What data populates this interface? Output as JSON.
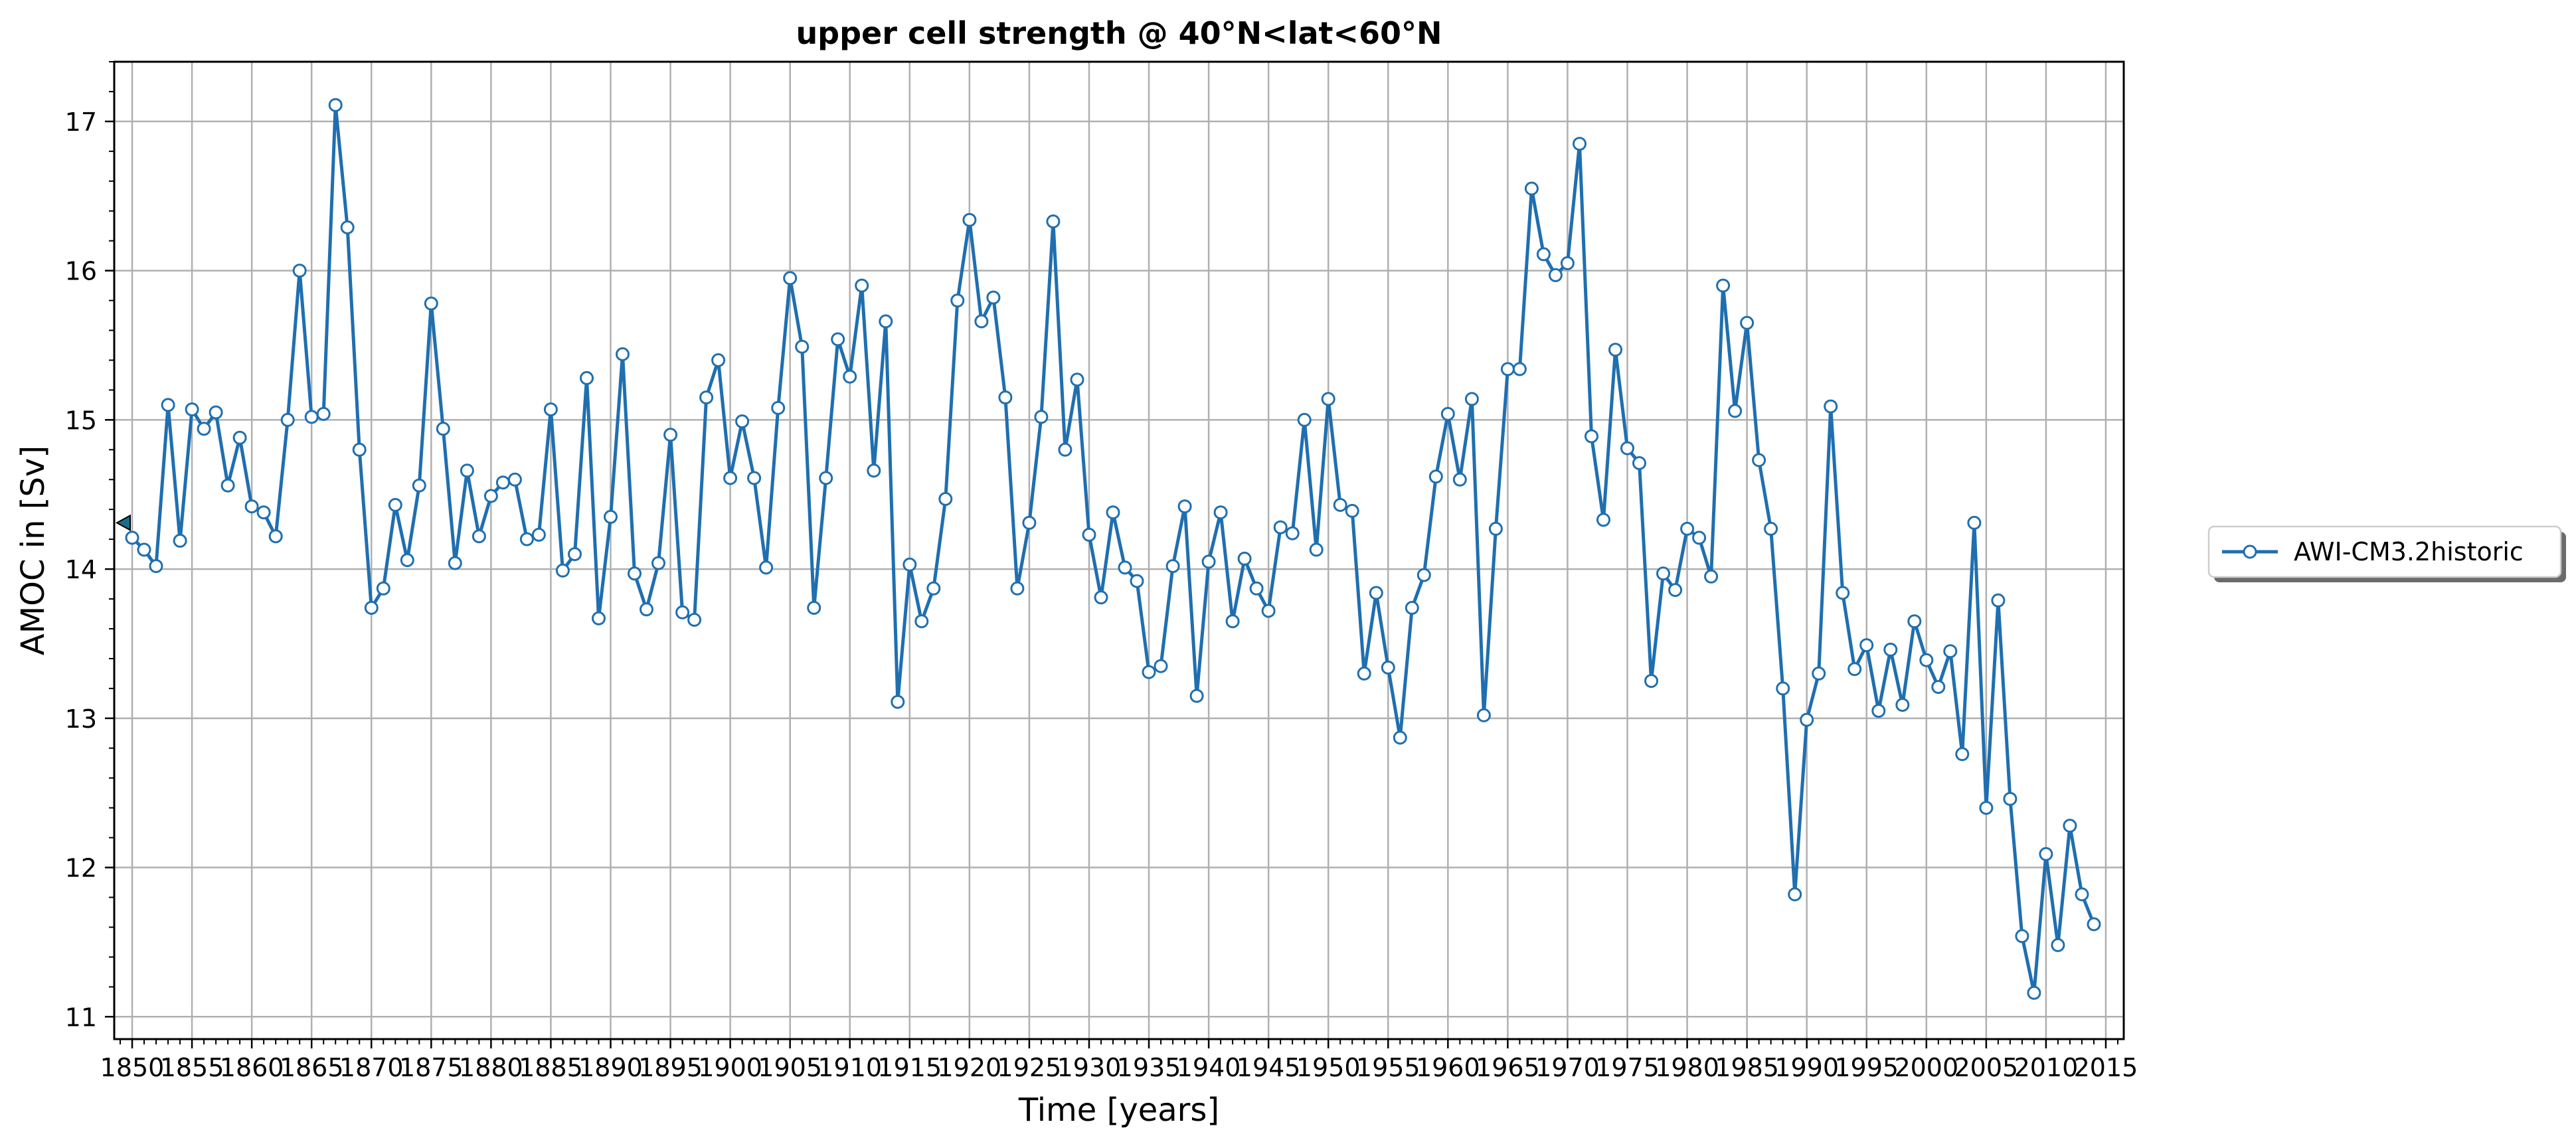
{
  "chart_data": {
    "type": "line",
    "title": "upper cell strength @ 40°N<lat<60°N",
    "xlabel": "Time [years]",
    "ylabel": "AMOC in [Sv]",
    "xlim": [
      1848.5,
      2016.5
    ],
    "ylim": [
      10.85,
      17.4
    ],
    "xticks": [
      1850,
      1855,
      1860,
      1865,
      1870,
      1875,
      1880,
      1885,
      1890,
      1895,
      1900,
      1905,
      1910,
      1915,
      1920,
      1925,
      1930,
      1935,
      1940,
      1945,
      1950,
      1955,
      1960,
      1965,
      1970,
      1975,
      1980,
      1985,
      1990,
      1995,
      2000,
      2005,
      2010,
      2015
    ],
    "yticks": [
      11,
      12,
      13,
      14,
      15,
      16,
      17
    ],
    "grid": true,
    "legend_position": "right",
    "start_marker_value": 14.31,
    "series": [
      {
        "name": "AWI-CM3.2historic",
        "color": "#1f6fb0",
        "x_start": 1850,
        "values": [
          14.21,
          14.13,
          14.02,
          15.1,
          14.19,
          15.07,
          14.94,
          15.05,
          14.56,
          14.88,
          14.42,
          14.38,
          14.22,
          15.0,
          16.0,
          15.02,
          15.04,
          17.11,
          16.29,
          14.8,
          13.74,
          13.87,
          14.43,
          14.06,
          14.56,
          15.78,
          14.94,
          14.04,
          14.66,
          14.22,
          14.49,
          14.58,
          14.6,
          14.2,
          14.23,
          15.07,
          13.99,
          14.1,
          15.28,
          13.67,
          14.35,
          15.44,
          13.97,
          13.73,
          14.04,
          14.9,
          13.71,
          13.66,
          15.15,
          15.4,
          14.61,
          14.99,
          14.61,
          14.01,
          15.08,
          15.95,
          15.49,
          13.74,
          14.61,
          15.54,
          15.29,
          15.9,
          14.66,
          15.66,
          13.11,
          14.03,
          13.65,
          13.87,
          14.47,
          15.8,
          16.34,
          15.66,
          15.82,
          15.15,
          13.87,
          14.31,
          15.02,
          16.33,
          14.8,
          15.27,
          14.23,
          13.81,
          14.38,
          14.01,
          13.92,
          13.31,
          13.35,
          14.02,
          14.42,
          13.15,
          14.05,
          14.38,
          13.65,
          14.07,
          13.87,
          13.72,
          14.28,
          14.24,
          15.0,
          14.13,
          15.14,
          14.43,
          14.39,
          13.3,
          13.84,
          13.34,
          12.87,
          13.74,
          13.96,
          14.62,
          15.04,
          14.6,
          15.14,
          13.02,
          14.27,
          15.34,
          15.34,
          16.55,
          16.11,
          15.97,
          16.05,
          16.85,
          14.89,
          14.33,
          15.47,
          14.81,
          14.71,
          13.25,
          13.97,
          13.86,
          14.27,
          14.21,
          13.95,
          15.9,
          15.06,
          15.65,
          14.73,
          14.27,
          13.2,
          11.82,
          12.99,
          13.3,
          15.09,
          13.84,
          13.33,
          13.49,
          13.05,
          13.46,
          13.09,
          13.65,
          13.39,
          13.21,
          13.45,
          12.76,
          14.31,
          12.4,
          13.79,
          12.46,
          11.54,
          11.16,
          12.09,
          11.48,
          12.28,
          11.82,
          11.62
        ]
      }
    ]
  }
}
